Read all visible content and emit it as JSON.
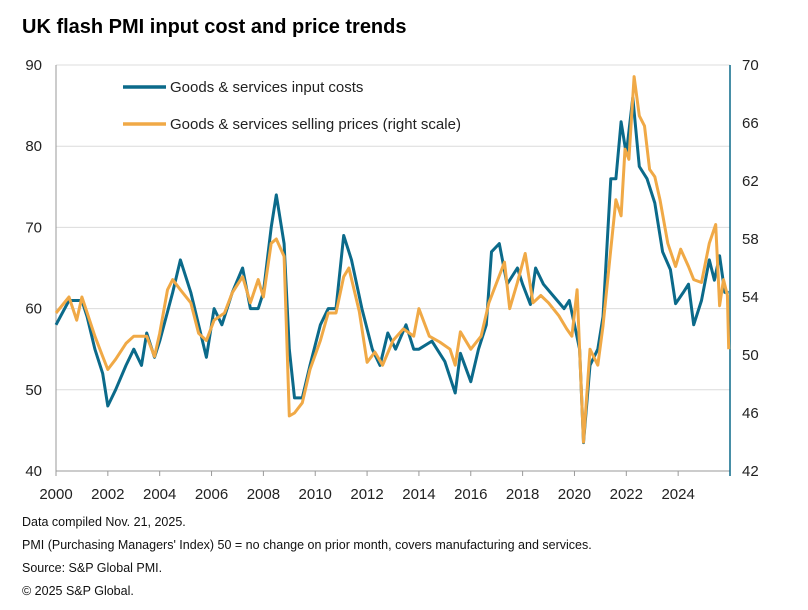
{
  "title": "UK flash PMI input cost and price trends",
  "footnotes": [
    "Data compiled Nov. 21, 2025.",
    "PMI (Purchasing Managers' Index) 50 = no change on prior month, covers manufacturing and services.",
    "Source: S&P Global PMI.",
    "© 2025 S&P Global."
  ],
  "chart_data": {
    "type": "line",
    "title": "UK flash PMI input cost and price trends",
    "xlim": [
      2000,
      2026
    ],
    "x_ticks": [
      "2000",
      "2002",
      "2004",
      "2006",
      "2008",
      "2010",
      "2012",
      "2014",
      "2016",
      "2018",
      "2020",
      "2022",
      "2024"
    ],
    "y_left": {
      "ylim": [
        40,
        90
      ],
      "ticks": [
        "40",
        "50",
        "60",
        "70",
        "80",
        "90"
      ]
    },
    "y_right": {
      "ylim": [
        42,
        70
      ],
      "ticks": [
        "42",
        "46",
        "50",
        "54",
        "58",
        "62",
        "66",
        "70"
      ]
    },
    "grid": true,
    "legend_position": "top-left",
    "series": [
      {
        "name": "Goods & services input costs",
        "axis": "left",
        "color": "#0b6a8a",
        "points": [
          [
            2000.0,
            58
          ],
          [
            2000.5,
            61
          ],
          [
            2001.0,
            61
          ],
          [
            2001.2,
            59
          ],
          [
            2001.5,
            55
          ],
          [
            2001.8,
            52
          ],
          [
            2002.0,
            48
          ],
          [
            2002.3,
            50
          ],
          [
            2002.7,
            53
          ],
          [
            2003.0,
            55
          ],
          [
            2003.3,
            53
          ],
          [
            2003.5,
            57
          ],
          [
            2003.8,
            54
          ],
          [
            2004.0,
            56
          ],
          [
            2004.5,
            62
          ],
          [
            2004.8,
            66
          ],
          [
            2005.2,
            62
          ],
          [
            2005.5,
            58
          ],
          [
            2005.8,
            54
          ],
          [
            2006.1,
            60
          ],
          [
            2006.4,
            58
          ],
          [
            2006.8,
            62
          ],
          [
            2007.2,
            65
          ],
          [
            2007.5,
            60
          ],
          [
            2007.8,
            60
          ],
          [
            2008.0,
            62
          ],
          [
            2008.3,
            70
          ],
          [
            2008.5,
            74
          ],
          [
            2008.8,
            68
          ],
          [
            2009.0,
            55
          ],
          [
            2009.2,
            49
          ],
          [
            2009.5,
            49
          ],
          [
            2009.8,
            53
          ],
          [
            2010.2,
            58
          ],
          [
            2010.5,
            60
          ],
          [
            2010.8,
            60
          ],
          [
            2011.1,
            69
          ],
          [
            2011.4,
            66
          ],
          [
            2011.8,
            60
          ],
          [
            2012.2,
            55
          ],
          [
            2012.5,
            53
          ],
          [
            2012.8,
            57
          ],
          [
            2013.1,
            55
          ],
          [
            2013.5,
            58
          ],
          [
            2013.8,
            55
          ],
          [
            2014.0,
            55
          ],
          [
            2014.5,
            56
          ],
          [
            2015.0,
            53.5
          ],
          [
            2015.4,
            49.6
          ],
          [
            2015.6,
            54.5
          ],
          [
            2016.0,
            51
          ],
          [
            2016.3,
            55
          ],
          [
            2016.6,
            58
          ],
          [
            2016.8,
            67
          ],
          [
            2017.1,
            68
          ],
          [
            2017.4,
            63
          ],
          [
            2017.8,
            65
          ],
          [
            2018.0,
            63
          ],
          [
            2018.3,
            60.5
          ],
          [
            2018.5,
            65
          ],
          [
            2018.8,
            63
          ],
          [
            2019.2,
            61.5
          ],
          [
            2019.6,
            60
          ],
          [
            2019.8,
            61
          ],
          [
            2020.0,
            58
          ],
          [
            2020.2,
            55
          ],
          [
            2020.35,
            43.5
          ],
          [
            2020.6,
            53
          ],
          [
            2020.9,
            55
          ],
          [
            2021.1,
            59
          ],
          [
            2021.4,
            76
          ],
          [
            2021.6,
            76
          ],
          [
            2021.8,
            83
          ],
          [
            2022.0,
            79
          ],
          [
            2022.25,
            86
          ],
          [
            2022.5,
            77.5
          ],
          [
            2022.8,
            76
          ],
          [
            2023.1,
            73
          ],
          [
            2023.4,
            67
          ],
          [
            2023.7,
            64.8
          ],
          [
            2023.9,
            60.6
          ],
          [
            2024.2,
            62
          ],
          [
            2024.4,
            63
          ],
          [
            2024.6,
            58
          ],
          [
            2024.9,
            61
          ],
          [
            2025.2,
            66
          ],
          [
            2025.4,
            63.5
          ],
          [
            2025.6,
            66.5
          ],
          [
            2025.8,
            62
          ],
          [
            2025.95,
            62
          ]
        ]
      },
      {
        "name": "Goods & services selling prices (right scale)",
        "axis": "right",
        "color": "#f0a946",
        "points": [
          [
            2000.0,
            52.9
          ],
          [
            2000.5,
            54
          ],
          [
            2000.8,
            52.4
          ],
          [
            2001.0,
            54
          ],
          [
            2001.5,
            51.3
          ],
          [
            2001.8,
            49.9
          ],
          [
            2002.0,
            49
          ],
          [
            2002.3,
            49.7
          ],
          [
            2002.7,
            50.8
          ],
          [
            2003.0,
            51.3
          ],
          [
            2003.5,
            51.3
          ],
          [
            2003.8,
            49.9
          ],
          [
            2004.0,
            51.5
          ],
          [
            2004.3,
            54.5
          ],
          [
            2004.5,
            55.2
          ],
          [
            2004.8,
            54.5
          ],
          [
            2005.2,
            53.6
          ],
          [
            2005.5,
            51.5
          ],
          [
            2005.8,
            51
          ],
          [
            2006.1,
            52.4
          ],
          [
            2006.5,
            52.9
          ],
          [
            2006.8,
            54.3
          ],
          [
            2007.2,
            55.4
          ],
          [
            2007.5,
            53.6
          ],
          [
            2007.8,
            55.2
          ],
          [
            2008.0,
            54
          ],
          [
            2008.3,
            57.7
          ],
          [
            2008.5,
            58
          ],
          [
            2008.8,
            56.8
          ],
          [
            2009.0,
            45.8
          ],
          [
            2009.2,
            46
          ],
          [
            2009.5,
            46.7
          ],
          [
            2009.8,
            49
          ],
          [
            2010.2,
            51
          ],
          [
            2010.5,
            52.9
          ],
          [
            2010.8,
            52.9
          ],
          [
            2011.1,
            55.4
          ],
          [
            2011.3,
            56
          ],
          [
            2011.7,
            53
          ],
          [
            2012.0,
            49.5
          ],
          [
            2012.3,
            50.2
          ],
          [
            2012.6,
            49.3
          ],
          [
            2013.0,
            51
          ],
          [
            2013.4,
            51.8
          ],
          [
            2013.8,
            51.3
          ],
          [
            2014.0,
            53.2
          ],
          [
            2014.4,
            51.3
          ],
          [
            2014.8,
            50.9
          ],
          [
            2015.2,
            50.4
          ],
          [
            2015.4,
            49.3
          ],
          [
            2015.6,
            51.6
          ],
          [
            2016.0,
            50.4
          ],
          [
            2016.4,
            51.3
          ],
          [
            2016.7,
            53.6
          ],
          [
            2017.0,
            55
          ],
          [
            2017.3,
            56.4
          ],
          [
            2017.5,
            53.2
          ],
          [
            2017.8,
            55
          ],
          [
            2018.1,
            57
          ],
          [
            2018.4,
            53.6
          ],
          [
            2018.7,
            54.1
          ],
          [
            2019.0,
            53.6
          ],
          [
            2019.4,
            52.7
          ],
          [
            2019.7,
            51.8
          ],
          [
            2019.9,
            51.3
          ],
          [
            2020.1,
            54.5
          ],
          [
            2020.35,
            44
          ],
          [
            2020.6,
            50.4
          ],
          [
            2020.9,
            49.3
          ],
          [
            2021.1,
            52
          ],
          [
            2021.4,
            57.3
          ],
          [
            2021.6,
            60.7
          ],
          [
            2021.8,
            59.6
          ],
          [
            2021.95,
            64.2
          ],
          [
            2022.1,
            63.5
          ],
          [
            2022.3,
            69.2
          ],
          [
            2022.5,
            66.5
          ],
          [
            2022.7,
            65.8
          ],
          [
            2022.9,
            62.8
          ],
          [
            2023.1,
            62.3
          ],
          [
            2023.3,
            60.7
          ],
          [
            2023.6,
            57.7
          ],
          [
            2023.9,
            56.1
          ],
          [
            2024.1,
            57.3
          ],
          [
            2024.4,
            56.1
          ],
          [
            2024.6,
            55.2
          ],
          [
            2024.9,
            55
          ],
          [
            2025.2,
            57.7
          ],
          [
            2025.45,
            59
          ],
          [
            2025.6,
            53.4
          ],
          [
            2025.75,
            55.2
          ],
          [
            2025.9,
            54.1
          ],
          [
            2025.95,
            50.4
          ]
        ]
      }
    ]
  }
}
